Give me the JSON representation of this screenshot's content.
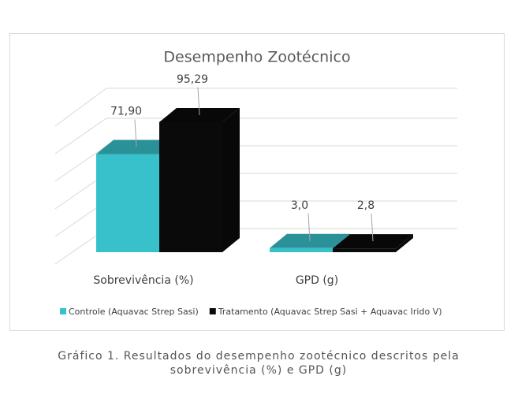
{
  "chart_data": {
    "type": "bar3d",
    "title": "Desempenho Zootécnico",
    "categories": [
      "Sobrevivência (%)",
      "GPD (g)"
    ],
    "series": [
      {
        "name": "Controle (Aquavac Strep Sasi)",
        "color": "#38c1cb",
        "values": [
          71.9,
          3.0
        ],
        "value_labels": [
          "71,90",
          "3,0"
        ]
      },
      {
        "name": "Tratamento (Aquavac Strep Sasi + Aquavac Irido V)",
        "color": "#0a0a0a",
        "values": [
          95.29,
          2.8
        ],
        "value_labels": [
          "95,29",
          "2,8"
        ]
      }
    ],
    "legend": "bottom"
  },
  "caption": [
    "Gráfico 1. Resultados do desempenho zootécnico descritos pela",
    "sobrevivência (%) e GPD (g)"
  ]
}
